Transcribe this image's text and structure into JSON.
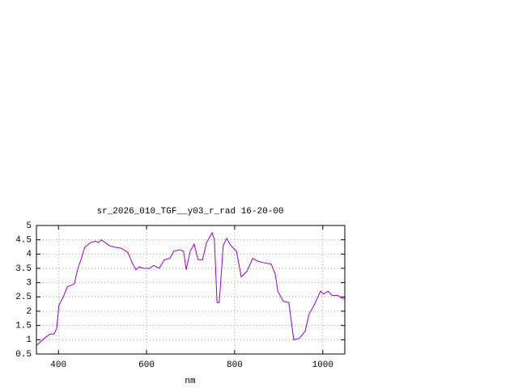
{
  "chart_data": {
    "type": "line",
    "title": "sr_2026_010_TGF__y03_r_rad 16-20-00",
    "x_label": "nm",
    "x": [
      350,
      368,
      381,
      390,
      396,
      401,
      411,
      420,
      427,
      436,
      444,
      451,
      460,
      473,
      484,
      491,
      497,
      506,
      515,
      525,
      543,
      558,
      567,
      576,
      583,
      594,
      607,
      616,
      629,
      640,
      653,
      662,
      675,
      684,
      690,
      699,
      708,
      717,
      727,
      736,
      749,
      754,
      760,
      765,
      774,
      782,
      791,
      804,
      815,
      828,
      841,
      852,
      865,
      883,
      892,
      898,
      910,
      923,
      934,
      947,
      960,
      969,
      980,
      995,
      1002,
      1012,
      1021,
      1035,
      1043,
      1050
    ],
    "series": [
      {
        "name": "sr_2026_010_TGF__y03_r_rad 16-20-00",
        "color": "#9400d3",
        "values": [
          0.8,
          1.05,
          1.2,
          1.2,
          1.4,
          2.2,
          2.5,
          2.85,
          2.9,
          2.95,
          3.5,
          3.8,
          4.25,
          4.4,
          4.45,
          4.4,
          4.5,
          4.4,
          4.3,
          4.25,
          4.2,
          4.05,
          3.7,
          3.45,
          3.55,
          3.5,
          3.5,
          3.6,
          3.5,
          3.8,
          3.85,
          4.1,
          4.15,
          4.1,
          3.45,
          4.1,
          4.35,
          3.8,
          3.8,
          4.4,
          4.75,
          4.5,
          2.3,
          2.3,
          4.3,
          4.55,
          4.3,
          4.1,
          3.2,
          3.4,
          3.85,
          3.75,
          3.7,
          3.65,
          3.3,
          2.7,
          2.35,
          2.3,
          1.0,
          1.05,
          1.3,
          1.9,
          2.2,
          2.7,
          2.6,
          2.7,
          2.55,
          2.55,
          2.45,
          2.45
        ]
      }
    ],
    "xlim": [
      350,
      1050
    ],
    "xticks": [
      400,
      600,
      800,
      1000
    ],
    "ylim": [
      0.5,
      5
    ],
    "yticks": [
      0.5,
      1,
      1.5,
      2,
      2.5,
      3,
      3.5,
      4,
      4.5,
      5
    ],
    "grid": true
  }
}
